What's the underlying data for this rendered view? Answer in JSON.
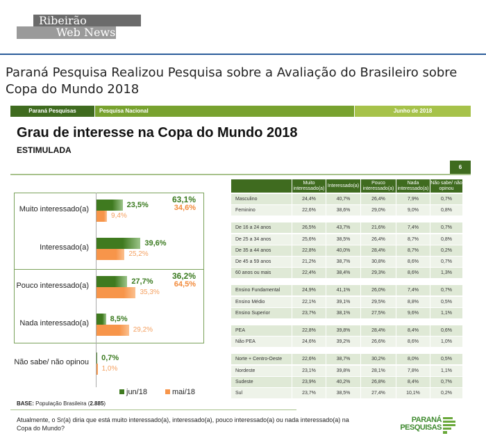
{
  "site": {
    "logo_line1": "Ribeirão",
    "logo_line2": "Web News"
  },
  "article": {
    "title": "Paraná Pesquisa Realizou Pesquisa sobre a Avaliação do Brasileiro sobre Copa do Mundo 2018"
  },
  "slide": {
    "bar": {
      "left": "Paraná Pesquisas",
      "middle": "Pesquisa Nacional",
      "right": "Junho de 2018"
    },
    "title": "Grau de interesse na Copa do Mundo 2018",
    "subtitle": "ESTIMULADA",
    "page_number": "6",
    "base_label": "BASE:",
    "base_text": " População Brasileira (",
    "base_value": "2.885",
    "base_close": ")",
    "question": "Atualmente, o Sr(a) diria que está muito interessado(a), interessado(a), pouco interessado(a) ou nada interessado(a) na Copa do Mundo?",
    "logo_line1": "PARANÁ",
    "logo_line2": "PESQUISAS"
  },
  "colors": {
    "jun": "#3f7a1f",
    "mai": "#f7954a",
    "dark_green": "#3f6b1f",
    "mid_green": "#78a22f",
    "light_green": "#a6c24a"
  },
  "chart_data": [
    {
      "type": "bar",
      "orientation": "horizontal",
      "categories": [
        "Muito interessado(a)",
        "Interessado(a)",
        "Pouco interessado(a)",
        "Nada interessado(a)",
        "Não sabe/ não opinou"
      ],
      "series": [
        {
          "name": "jun/18",
          "values": [
            23.5,
            39.6,
            27.7,
            8.5,
            0.7
          ],
          "labels": [
            "23,5%",
            "39,6%",
            "27,7%",
            "8,5%",
            "0,7%"
          ]
        },
        {
          "name": "mai/18",
          "values": [
            9.4,
            25.2,
            35.3,
            29.2,
            1.0
          ],
          "labels": [
            "9,4%",
            "25,2%",
            "35,3%",
            "29,2%",
            "1,0%"
          ]
        }
      ],
      "group_totals": [
        {
          "jun": "63,1%",
          "mai": "34,6%"
        },
        {
          "jun": "36,2%",
          "mai": "64,5%"
        }
      ],
      "legend": "bottom",
      "xlim": [
        0,
        100
      ]
    },
    {
      "type": "table",
      "columns": [
        "",
        "Muito interessado(a)",
        "Interessado(a)",
        "Pouco interessado(a)",
        "Nada interessado(a)",
        "Não sabe/ não opinou"
      ],
      "groups": [
        [
          [
            "Masculino",
            "24,4%",
            "40,7%",
            "26,4%",
            "7,9%",
            "0,7%"
          ],
          [
            "Feminino",
            "22,6%",
            "38,6%",
            "29,0%",
            "9,0%",
            "0,8%"
          ]
        ],
        [
          [
            "De 16 a 24 anos",
            "26,5%",
            "43,7%",
            "21,6%",
            "7,4%",
            "0,7%"
          ],
          [
            "De 25 a 34 anos",
            "25,6%",
            "38,5%",
            "26,4%",
            "8,7%",
            "0,8%"
          ],
          [
            "De 35 a 44 anos",
            "22,8%",
            "40,0%",
            "28,4%",
            "8,7%",
            "0,2%"
          ],
          [
            "De 45 a 59 anos",
            "21,2%",
            "38,7%",
            "30,8%",
            "8,6%",
            "0,7%"
          ],
          [
            "60 anos ou mais",
            "22,4%",
            "38,4%",
            "29,3%",
            "8,6%",
            "1,3%"
          ]
        ],
        [
          [
            "Ensino Fundamental",
            "24,9%",
            "41,1%",
            "26,0%",
            "7,4%",
            "0,7%"
          ],
          [
            "Ensino Médio",
            "22,1%",
            "39,1%",
            "29,5%",
            "8,8%",
            "0,5%"
          ],
          [
            "Ensino Superior",
            "23,7%",
            "38,1%",
            "27,5%",
            "9,6%",
            "1,1%"
          ]
        ],
        [
          [
            "PEA",
            "22,8%",
            "39,8%",
            "28,4%",
            "8,4%",
            "0,6%"
          ],
          [
            "Não PEA",
            "24,6%",
            "39,2%",
            "26,6%",
            "8,6%",
            "1,0%"
          ]
        ],
        [
          [
            "Norte + Centro-Oeste",
            "22,6%",
            "38,7%",
            "30,2%",
            "8,0%",
            "0,5%"
          ],
          [
            "Nordeste",
            "23,1%",
            "39,8%",
            "28,1%",
            "7,8%",
            "1,1%"
          ],
          [
            "Sudeste",
            "23,9%",
            "40,2%",
            "26,8%",
            "8,4%",
            "0,7%"
          ],
          [
            "Sul",
            "23,7%",
            "38,5%",
            "27,4%",
            "10,1%",
            "0,2%"
          ]
        ]
      ]
    }
  ]
}
